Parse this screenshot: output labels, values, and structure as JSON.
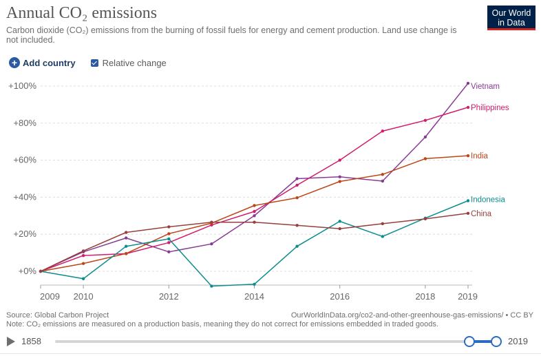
{
  "header": {
    "title": "Annual CO₂ emissions",
    "subtitle": "Carbon dioxide (CO₂) emissions from the burning of fossil fuels for energy and cement production. Land use change is not included.",
    "logo_line1": "Our World",
    "logo_line2": "in Data"
  },
  "controls": {
    "add_country_label": "Add country",
    "relative_change_label": "Relative change",
    "relative_change_checked": true
  },
  "footer": {
    "source": "Source: Global Carbon Project",
    "url": "OurWorldInData.org/co2-and-other-greenhouse-gas-emissions/ • CC BY",
    "note": "Note: CO₂ emissions are measured on a production basis, meaning they do not correct for emissions embedded in traded goods."
  },
  "timeline": {
    "start_year": "1858",
    "end_year": "2019",
    "range_start": 2009,
    "range_end": 2019
  },
  "chart_data": {
    "type": "line",
    "title": "Annual CO₂ emissions",
    "xlabel": "",
    "ylabel": "",
    "x": [
      2009,
      2010,
      2011,
      2012,
      2013,
      2014,
      2015,
      2016,
      2017,
      2018,
      2019
    ],
    "x_ticks": [
      2009,
      2010,
      2012,
      2014,
      2016,
      2018,
      2019
    ],
    "y_ticks": [
      0,
      20,
      40,
      60,
      80,
      100
    ],
    "y_tick_labels": [
      "+0%",
      "+20%",
      "+40%",
      "+60%",
      "+80%",
      "+100%"
    ],
    "ylim": [
      -9,
      103
    ],
    "grid": "horizontal dashed",
    "legend_placement": "line-end labels on right",
    "series": [
      {
        "name": "Vietnam",
        "color": "#883b94",
        "values": [
          0,
          10.5,
          18,
          10.5,
          14.8,
          30,
          50,
          51,
          48.7,
          72.5,
          101.5
        ]
      },
      {
        "name": "Philippines",
        "color": "#d01c6b",
        "values": [
          0,
          8.5,
          9.5,
          15.5,
          25,
          32.3,
          46.5,
          60,
          75.7,
          81.5,
          88.5
        ]
      },
      {
        "name": "India",
        "color": "#bc4516",
        "values": [
          0,
          4.2,
          9.6,
          20.3,
          26,
          35.5,
          39.7,
          48.5,
          52.3,
          60.8,
          62.4
        ]
      },
      {
        "name": "Indonesia",
        "color": "#0c8c8c",
        "values": [
          0,
          -4,
          13.5,
          17.5,
          -8,
          -7,
          13.5,
          27,
          18.8,
          28.7,
          38.1
        ]
      },
      {
        "name": "China",
        "color": "#963f3d",
        "values": [
          0,
          11,
          21,
          24,
          26.5,
          26.5,
          24.8,
          23,
          25.7,
          28.3,
          31.3
        ]
      }
    ]
  }
}
